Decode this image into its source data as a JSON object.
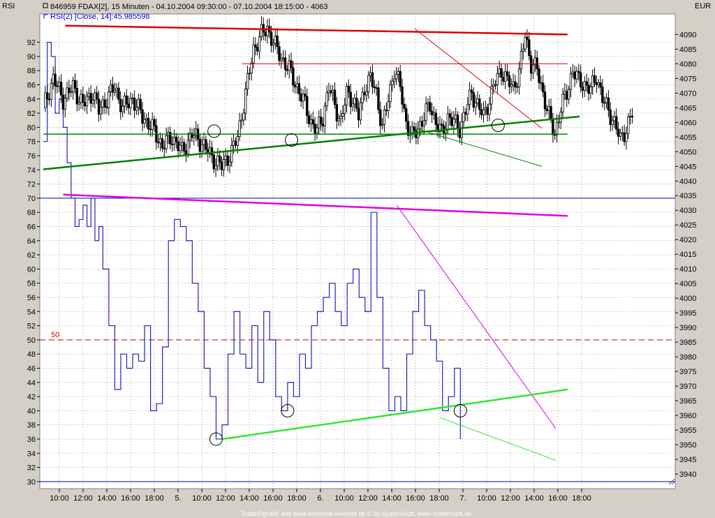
{
  "header": {
    "left_label": "RSI",
    "right_label": "EUR",
    "line1": "846959  FDAX[2], 15 Minuten - 04.10.2004 09:30:00 - 07.10.2004 18:15:00 - 4063",
    "line2": "RSI(2) [Close, 14]:45.985598"
  },
  "footer": "TradeSignal® and www.technical-investor.de © by SystemSoft, www.systemsoft.de",
  "colors": {
    "background": "#d4d0c8",
    "plot": "#ffffff",
    "price": "#000000",
    "rsi": "#2323b4",
    "resistance_red": "#e00000",
    "support_green": "#008000",
    "rsi_resistance": "#e000e0",
    "rsi_support": "#33e633",
    "level_line": "#0000cc",
    "midline_red": "#cc0000"
  },
  "chart_data": {
    "type": "line",
    "title": "846959  FDAX[2], 15 Minuten - 04.10.2004 09:30:00 - 07.10.2004 18:15:00 - 4063",
    "x_tick_labels": [
      "10:00",
      "12:00",
      "14:00",
      "16:00",
      "18:00",
      "5.",
      "10:00",
      "12:00",
      "14:00",
      "16:00",
      "18:00",
      "6.",
      "10:00",
      "12:00",
      "14:00",
      "16:00",
      "18:00",
      "7.",
      "10:00",
      "12:00",
      "14:00",
      "16:00",
      "18:00"
    ],
    "x_range": [
      0,
      270
    ],
    "left_axis": {
      "label": "RSI",
      "range": [
        29,
        96
      ],
      "ticks": [
        30,
        32,
        34,
        36,
        38,
        40,
        42,
        44,
        46,
        48,
        50,
        52,
        54,
        56,
        58,
        60,
        62,
        64,
        66,
        68,
        70,
        72,
        74,
        76,
        78,
        80,
        82,
        84,
        86,
        88,
        90,
        92
      ]
    },
    "right_axis": {
      "label": "EUR",
      "range": [
        3935,
        4097
      ],
      "ticks": [
        3940,
        3945,
        3950,
        3955,
        3960,
        3965,
        3970,
        3975,
        3980,
        3985,
        3990,
        3995,
        4000,
        4005,
        4010,
        4015,
        4020,
        4025,
        4030,
        4035,
        4040,
        4045,
        4050,
        4055,
        4060,
        4065,
        4070,
        4075,
        4080,
        4085,
        4090
      ]
    },
    "rsi_levels": [
      {
        "value": 70,
        "style": "solid"
      },
      {
        "value": 30,
        "style": "solid"
      },
      {
        "value": 50,
        "style": "dashed",
        "label": "50"
      }
    ],
    "price_series": {
      "name": "846959 FDAX[2]",
      "anchors": [
        [
          0,
          4065
        ],
        [
          5,
          4075
        ],
        [
          10,
          4068
        ],
        [
          15,
          4072
        ],
        [
          20,
          4066
        ],
        [
          25,
          4070
        ],
        [
          28,
          4064
        ],
        [
          32,
          4068
        ],
        [
          36,
          4072
        ],
        [
          40,
          4065
        ],
        [
          45,
          4068
        ],
        [
          50,
          4062
        ],
        [
          55,
          4058
        ],
        [
          60,
          4052
        ],
        [
          65,
          4055
        ],
        [
          70,
          4050
        ],
        [
          75,
          4056
        ],
        [
          80,
          4053
        ],
        [
          85,
          4048
        ],
        [
          90,
          4045
        ],
        [
          95,
          4050
        ],
        [
          98,
          4055
        ],
        [
          102,
          4070
        ],
        [
          106,
          4085
        ],
        [
          110,
          4090
        ],
        [
          113,
          4092
        ],
        [
          117,
          4086
        ],
        [
          120,
          4082
        ],
        [
          124,
          4078
        ],
        [
          128,
          4072
        ],
        [
          132,
          4066
        ],
        [
          135,
          4060
        ],
        [
          138,
          4057
        ],
        [
          141,
          4062
        ],
        [
          144,
          4072
        ],
        [
          147,
          4066
        ],
        [
          150,
          4060
        ],
        [
          153,
          4070
        ],
        [
          156,
          4068
        ],
        [
          159,
          4062
        ],
        [
          162,
          4072
        ],
        [
          165,
          4075
        ],
        [
          168,
          4070
        ],
        [
          171,
          4058
        ],
        [
          174,
          4068
        ],
        [
          177,
          4078
        ],
        [
          180,
          4072
        ],
        [
          183,
          4060
        ],
        [
          186,
          4055
        ],
        [
          189,
          4058
        ],
        [
          192,
          4062
        ],
        [
          195,
          4066
        ],
        [
          198,
          4060
        ],
        [
          201,
          4056
        ],
        [
          204,
          4062
        ],
        [
          207,
          4060
        ],
        [
          210,
          4058
        ],
        [
          213,
          4064
        ],
        [
          216,
          4070
        ],
        [
          219,
          4066
        ],
        [
          222,
          4062
        ],
        [
          225,
          4068
        ],
        [
          228,
          4074
        ],
        [
          231,
          4078
        ],
        [
          234,
          4074
        ],
        [
          237,
          4072
        ],
        [
          240,
          4077
        ],
        [
          243,
          4090
        ],
        [
          246,
          4080
        ],
        [
          249,
          4078
        ],
        [
          252,
          4070
        ],
        [
          255,
          4062
        ],
        [
          258,
          4056
        ],
        [
          261,
          4065
        ],
        [
          264,
          4070
        ],
        [
          267,
          4078
        ],
        [
          270,
          4074
        ],
        [
          273,
          4073
        ],
        [
          276,
          4071
        ],
        [
          279,
          4076
        ],
        [
          282,
          4068
        ],
        [
          285,
          4064
        ],
        [
          288,
          4060
        ],
        [
          291,
          4054
        ],
        [
          294,
          4058
        ],
        [
          297,
          4063
        ]
      ]
    },
    "rsi_series": {
      "name": "RSI(2) [Close, 14]",
      "anchors": [
        [
          0,
          78
        ],
        [
          2,
          92
        ],
        [
          4,
          90
        ],
        [
          6,
          82
        ],
        [
          8,
          84
        ],
        [
          10,
          80
        ],
        [
          12,
          75
        ],
        [
          14,
          70
        ],
        [
          16,
          66
        ],
        [
          18,
          67
        ],
        [
          20,
          69
        ],
        [
          22,
          66
        ],
        [
          24,
          70
        ],
        [
          26,
          64
        ],
        [
          28,
          66
        ],
        [
          30,
          60
        ],
        [
          33,
          52
        ],
        [
          36,
          43
        ],
        [
          39,
          48
        ],
        [
          42,
          46
        ],
        [
          45,
          48
        ],
        [
          48,
          47
        ],
        [
          51,
          52
        ],
        [
          54,
          40
        ],
        [
          57,
          41
        ],
        [
          60,
          49
        ],
        [
          63,
          64
        ],
        [
          66,
          67
        ],
        [
          69,
          66
        ],
        [
          72,
          64
        ],
        [
          75,
          58
        ],
        [
          78,
          54
        ],
        [
          81,
          46
        ],
        [
          84,
          42
        ],
        [
          87,
          36
        ],
        [
          90,
          38
        ],
        [
          93,
          48
        ],
        [
          96,
          54
        ],
        [
          99,
          48
        ],
        [
          102,
          46
        ],
        [
          105,
          52
        ],
        [
          108,
          44
        ],
        [
          111,
          54
        ],
        [
          114,
          50
        ],
        [
          117,
          42
        ],
        [
          120,
          40
        ],
        [
          123,
          44
        ],
        [
          126,
          42
        ],
        [
          129,
          48
        ],
        [
          132,
          46
        ],
        [
          135,
          52
        ],
        [
          138,
          54
        ],
        [
          141,
          56
        ],
        [
          144,
          58
        ],
        [
          147,
          54
        ],
        [
          150,
          52
        ],
        [
          153,
          58
        ],
        [
          156,
          60
        ],
        [
          159,
          56
        ],
        [
          162,
          54
        ],
        [
          165,
          68
        ],
        [
          168,
          56
        ],
        [
          171,
          46
        ],
        [
          174,
          40
        ],
        [
          177,
          42
        ],
        [
          180,
          40
        ],
        [
          183,
          48
        ],
        [
          186,
          54
        ],
        [
          189,
          57
        ],
        [
          192,
          52
        ],
        [
          195,
          50
        ],
        [
          198,
          47
        ],
        [
          201,
          40
        ],
        [
          204,
          42
        ],
        [
          207,
          46
        ],
        [
          210,
          36
        ]
      ]
    },
    "annotations": [
      {
        "panel": "price",
        "type": "trendline",
        "color": "resistance_red",
        "from": [
          11,
          4093
        ],
        "to": [
          264,
          4090
        ],
        "width": 2.5
      },
      {
        "panel": "price",
        "type": "trendline",
        "color": "resistance_red",
        "from": [
          100,
          4080
        ],
        "to": [
          264,
          4080
        ],
        "width": 1
      },
      {
        "panel": "price",
        "type": "trendline",
        "color": "resistance_red",
        "from": [
          187,
          4092
        ],
        "to": [
          251,
          4058
        ],
        "width": 1
      },
      {
        "panel": "price",
        "type": "trendline",
        "color": "support_green",
        "from": [
          0,
          4056
        ],
        "to": [
          264,
          4056
        ],
        "width": 1.5
      },
      {
        "panel": "price",
        "type": "trendline",
        "color": "support_green",
        "from": [
          0,
          4044
        ],
        "to": [
          270,
          4062
        ],
        "width": 2.5
      },
      {
        "panel": "price",
        "type": "trendline",
        "color": "support_green",
        "from": [
          187,
          4058
        ],
        "to": [
          251,
          4045
        ],
        "width": 1
      },
      {
        "panel": "rsi",
        "type": "trendline",
        "color": "rsi_resistance",
        "from": [
          10,
          70.5
        ],
        "to": [
          264,
          67.5
        ],
        "width": 2.5
      },
      {
        "panel": "rsi",
        "type": "trendline",
        "color": "rsi_resistance",
        "from": [
          178,
          69
        ],
        "to": [
          258,
          37.5
        ],
        "width": 1
      },
      {
        "panel": "rsi",
        "type": "trendline",
        "color": "rsi_support",
        "from": [
          90,
          36
        ],
        "to": [
          264,
          43
        ],
        "width": 2.5
      },
      {
        "panel": "rsi",
        "type": "trendline",
        "color": "rsi_support",
        "from": [
          200,
          39
        ],
        "to": [
          258,
          33
        ],
        "width": 1
      },
      {
        "panel": "price",
        "type": "circle",
        "at": [
          86,
          4057
        ]
      },
      {
        "panel": "price",
        "type": "circle",
        "at": [
          125,
          4054
        ]
      },
      {
        "panel": "price",
        "type": "circle",
        "at": [
          229,
          4059
        ]
      },
      {
        "panel": "rsi",
        "type": "circle",
        "at": [
          87,
          36
        ]
      },
      {
        "panel": "rsi",
        "type": "circle",
        "at": [
          123,
          40
        ]
      },
      {
        "panel": "rsi",
        "type": "circle",
        "at": [
          210,
          40
        ]
      }
    ]
  }
}
